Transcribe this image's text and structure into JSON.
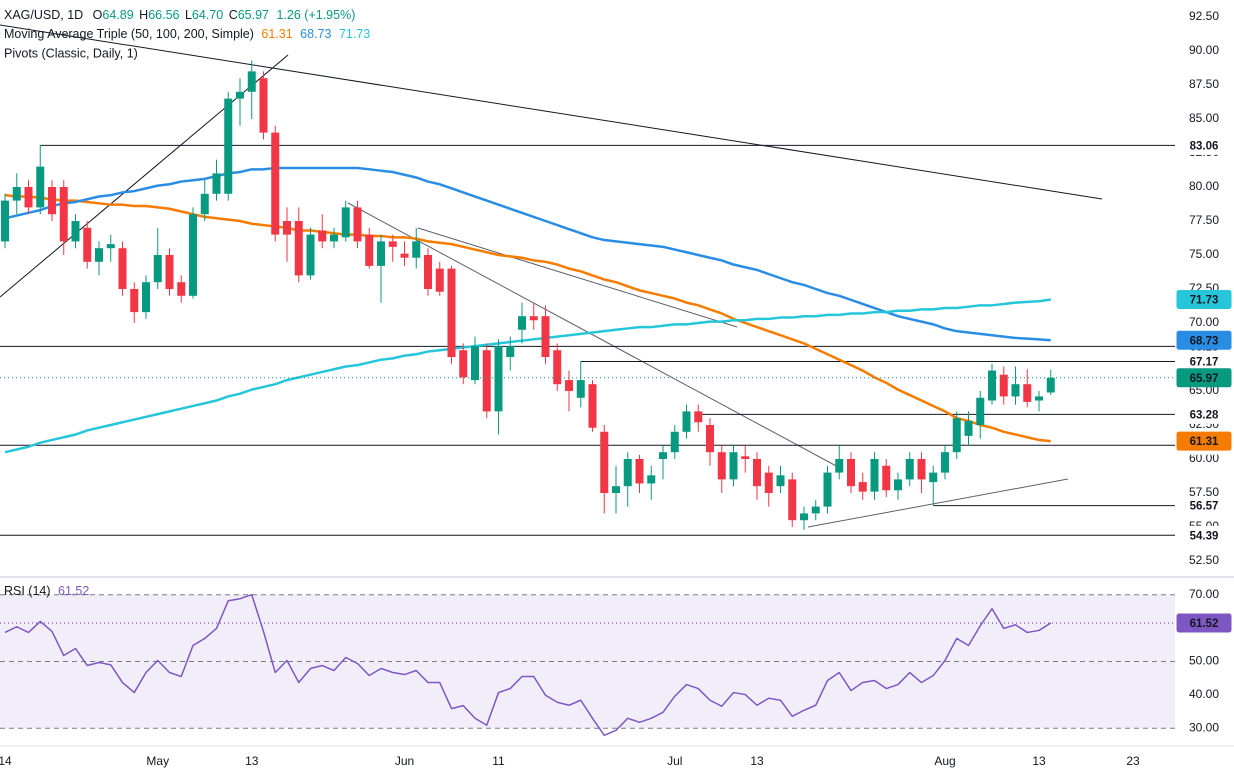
{
  "chart_data": [
    {
      "type": "candlestick",
      "title": "XAG/USD, 1D",
      "ohlc_legend": [
        {
          "key": "O",
          "label": "64.89"
        },
        {
          "key": "H",
          "label": "66.56"
        },
        {
          "key": "L",
          "label": "64.70"
        },
        {
          "key": "C",
          "label": "65.97"
        }
      ],
      "change": "1.26 (+1.95%)",
      "ma_title": "Moving Average Triple (50, 100, 200, Simple)",
      "pivots_title": "Pivots (Classic, Daily, 1)",
      "categories": [
        "14",
        null,
        null,
        null,
        null,
        null,
        null,
        null,
        null,
        null,
        null,
        null,
        null,
        "May",
        null,
        null,
        null,
        null,
        null,
        null,
        null,
        "13",
        null,
        null,
        null,
        null,
        null,
        null,
        null,
        null,
        null,
        null,
        null,
        null,
        "Jun",
        null,
        null,
        null,
        null,
        null,
        null,
        null,
        "11",
        null,
        null,
        null,
        null,
        null,
        null,
        null,
        null,
        null,
        null,
        null,
        null,
        null,
        null,
        "Jul",
        null,
        null,
        null,
        null,
        null,
        null,
        "13",
        null,
        null,
        null,
        null,
        null,
        null,
        null,
        null,
        null,
        null,
        null,
        null,
        null,
        null,
        null,
        "Aug",
        null,
        null,
        null,
        null,
        null,
        null,
        null,
        "13",
        null,
        null,
        null,
        null,
        null,
        null,
        null,
        "23",
        null,
        null,
        null
      ],
      "open": [
        76,
        79,
        80,
        78.5,
        80,
        80,
        76,
        77,
        74.5,
        75.5,
        75.5,
        72.5,
        70.8,
        73,
        75,
        73,
        72,
        78,
        79.5,
        79.5,
        86.5,
        87,
        88,
        84,
        77.5,
        77.5,
        73.5,
        76.8,
        76,
        76.3,
        78.5,
        76.5,
        74.2,
        76,
        75.1,
        74.8,
        75,
        74,
        74,
        68,
        65.8,
        68,
        63.5,
        67.5,
        69.5,
        70.5,
        70.5,
        68,
        65.8,
        64.5,
        65.5,
        62,
        57.5,
        58,
        60,
        58.2,
        60,
        60.5,
        62,
        63.5,
        62.5,
        60.5,
        58.5,
        60.2,
        60,
        59,
        58,
        58.5,
        55.5,
        56,
        56.5,
        59,
        60,
        58.3,
        57.6,
        59.5,
        57.7,
        58.5,
        60,
        58.3,
        59,
        60.5,
        61.7,
        62.5,
        64.3,
        66.2,
        64.6,
        65.5,
        64.3,
        64.89,
        null,
        null,
        null,
        null,
        null,
        null,
        null,
        null,
        null,
        null
      ],
      "high": [
        79.5,
        81,
        80.5,
        83.1,
        80.5,
        80.5,
        78,
        77.5,
        76,
        76.5,
        76,
        73,
        73.5,
        77,
        75.5,
        73.5,
        78.5,
        80.5,
        82,
        87,
        88,
        89.3,
        88.5,
        84.5,
        78.5,
        78.5,
        77,
        78,
        77,
        79,
        79,
        77,
        76.5,
        76.5,
        76,
        77,
        75.5,
        74.5,
        74.2,
        68.5,
        69,
        68.5,
        68.8,
        69,
        71.5,
        71.5,
        71.3,
        68.5,
        66.5,
        67.2,
        65.8,
        62.5,
        59.5,
        60.5,
        60.3,
        59.5,
        61,
        62.5,
        64,
        64,
        63,
        61,
        61,
        61,
        60.5,
        59.5,
        59.5,
        59,
        56.5,
        57,
        59.5,
        61,
        60.5,
        59,
        60.5,
        60,
        59,
        60.5,
        60.5,
        59.5,
        61,
        63.5,
        63.5,
        65,
        67,
        66.8,
        66.8,
        66.6,
        65,
        66.56,
        null,
        null,
        null,
        null,
        null,
        null,
        null,
        null,
        null,
        null
      ],
      "low": [
        75.5,
        78,
        78,
        78,
        77.5,
        75,
        75.5,
        74,
        73.5,
        74.5,
        72,
        70,
        70.3,
        72.5,
        72,
        71.5,
        71.8,
        77.5,
        79,
        79,
        84.5,
        85,
        83.5,
        76,
        74.5,
        73,
        73.2,
        75.5,
        75.5,
        76,
        75.5,
        74,
        71.5,
        74.5,
        74.2,
        74,
        72,
        72,
        67,
        65.5,
        65.5,
        63,
        61.8,
        66.5,
        68.5,
        69.5,
        67,
        65,
        63.5,
        63.8,
        62,
        56,
        56,
        56.5,
        57.5,
        57,
        58.5,
        60,
        61.5,
        62,
        59.5,
        57.5,
        58,
        59,
        57,
        56.5,
        57.5,
        55,
        54.8,
        55.5,
        56,
        58.5,
        57.5,
        57,
        57,
        57.2,
        57,
        58,
        57.5,
        56.6,
        58.5,
        60,
        61,
        61.5,
        64,
        64,
        64,
        63.8,
        63.5,
        64.7,
        null,
        null,
        null,
        null,
        null,
        null,
        null,
        null,
        null,
        null
      ],
      "close": [
        79,
        80,
        78.5,
        81.5,
        78,
        76,
        77.5,
        74.5,
        75.5,
        75.8,
        72.5,
        70.8,
        73,
        75,
        72.5,
        72,
        78,
        79.5,
        81,
        86.5,
        87,
        88.5,
        84,
        76.5,
        76.5,
        73.5,
        76.5,
        76,
        76.5,
        78.5,
        76,
        74.2,
        76,
        75.6,
        74.8,
        76,
        72.5,
        72.3,
        67.5,
        66,
        68.3,
        63.5,
        68.3,
        68.3,
        70.5,
        70.2,
        67.5,
        65.5,
        65,
        65.8,
        62.3,
        57.5,
        58,
        60,
        58.2,
        58.8,
        60.5,
        62,
        63.5,
        62.7,
        60.5,
        58.5,
        60.5,
        60,
        58,
        57.5,
        58.8,
        55.5,
        56,
        56.5,
        59,
        60,
        58,
        57.6,
        60,
        57.7,
        58.5,
        60,
        58.5,
        59,
        60.5,
        63,
        62.8,
        64.5,
        66.5,
        64.6,
        65.5,
        64.2,
        64.6,
        65.97,
        null,
        null,
        null,
        null,
        null,
        null,
        null,
        null,
        null,
        null
      ],
      "up_color": "#089981",
      "down_color": "#f23645",
      "series": [
        {
          "color": "#f57c00",
          "values": [
            79.4,
            79.3,
            79.3,
            79.2,
            79.1,
            79.0,
            79.0,
            78.9,
            78.8,
            78.7,
            78.7,
            78.6,
            78.6,
            78.5,
            78.4,
            78.2,
            78.0,
            77.8,
            77.7,
            77.6,
            77.5,
            77.3,
            77.2,
            77.1,
            77.0,
            76.8,
            76.8,
            76.7,
            76.6,
            76.5,
            76.5,
            76.4,
            76.4,
            76.3,
            76.3,
            76.2,
            76.0,
            75.9,
            75.8,
            75.6,
            75.4,
            75.2,
            75.0,
            74.9,
            74.8,
            74.6,
            74.5,
            74.3,
            74.0,
            73.8,
            73.5,
            73.2,
            73.0,
            72.7,
            72.4,
            72.2,
            72.0,
            71.8,
            71.5,
            71.3,
            71.0,
            70.7,
            70.3,
            70.0,
            69.7,
            69.4,
            69.1,
            68.8,
            68.5,
            68.1,
            67.7,
            67.3,
            66.9,
            66.5,
            66.0,
            65.6,
            65.1,
            64.7,
            64.3,
            63.9,
            63.5,
            63.0,
            62.8,
            62.5,
            62.3,
            62.0,
            61.8,
            61.6,
            61.4,
            61.31,
            null,
            null,
            null,
            null,
            null,
            null,
            null,
            null,
            null,
            null
          ]
        },
        {
          "color": "#2a8de4",
          "values": [
            77.7,
            77.9,
            78.1,
            78.3,
            78.6,
            78.8,
            78.9,
            79.1,
            79.3,
            79.4,
            79.6,
            79.7,
            79.9,
            80.1,
            80.2,
            80.4,
            80.5,
            80.6,
            80.8,
            81.0,
            81.1,
            81.3,
            81.3,
            81.4,
            81.4,
            81.4,
            81.4,
            81.4,
            81.4,
            81.4,
            81.4,
            81.3,
            81.2,
            81.1,
            80.9,
            80.7,
            80.4,
            80.2,
            79.9,
            79.6,
            79.3,
            79.0,
            78.7,
            78.4,
            78.1,
            77.8,
            77.5,
            77.2,
            76.9,
            76.6,
            76.3,
            76.1,
            76.0,
            75.9,
            75.8,
            75.7,
            75.6,
            75.4,
            75.2,
            75.0,
            74.8,
            74.6,
            74.3,
            74.1,
            73.9,
            73.6,
            73.3,
            73.0,
            72.8,
            72.5,
            72.2,
            72.0,
            71.7,
            71.4,
            71.1,
            70.8,
            70.5,
            70.3,
            70.1,
            69.9,
            69.6,
            69.4,
            69.3,
            69.2,
            69.1,
            69.0,
            68.9,
            68.85,
            68.8,
            68.73,
            null,
            null,
            null,
            null,
            null,
            null,
            null,
            null,
            null,
            null
          ]
        },
        {
          "color": "#26c6da",
          "values": [
            60.5,
            60.7,
            60.9,
            61.2,
            61.4,
            61.6,
            61.8,
            62.1,
            62.3,
            62.5,
            62.7,
            62.9,
            63.1,
            63.3,
            63.5,
            63.7,
            63.9,
            64.1,
            64.3,
            64.6,
            64.8,
            65.1,
            65.3,
            65.5,
            65.8,
            66.0,
            66.2,
            66.4,
            66.6,
            66.8,
            66.9,
            67.1,
            67.3,
            67.4,
            67.6,
            67.7,
            67.9,
            68.0,
            68.1,
            68.2,
            68.3,
            68.4,
            68.5,
            68.6,
            68.7,
            68.8,
            68.9,
            69.0,
            69.1,
            69.2,
            69.3,
            69.4,
            69.5,
            69.6,
            69.7,
            69.7,
            69.8,
            69.9,
            69.9,
            70.0,
            70.1,
            70.1,
            70.2,
            70.2,
            70.3,
            70.3,
            70.4,
            70.4,
            70.5,
            70.5,
            70.6,
            70.6,
            70.7,
            70.7,
            70.8,
            70.8,
            70.9,
            70.9,
            71.0,
            71.0,
            71.1,
            71.1,
            71.2,
            71.3,
            71.3,
            71.4,
            71.5,
            71.55,
            71.6,
            71.73,
            null,
            null,
            null,
            null,
            null,
            null,
            null,
            null,
            null,
            null
          ]
        }
      ],
      "pivots": [
        83.06,
        68.28,
        67.17,
        63.28,
        61.01,
        56.57,
        54.39
      ],
      "pivot_color": "#131722",
      "ylim": [
        51.47,
        93.75
      ],
      "yticks": [
        {
          "value": 52.5,
          "label": "52.50"
        },
        {
          "value": 55,
          "label": "55.00"
        },
        {
          "value": 57.5,
          "label": "57.50"
        },
        {
          "value": 60,
          "label": "60.00"
        },
        {
          "value": 62.5,
          "label": "62.50"
        },
        {
          "value": 65,
          "label": "65.00"
        },
        {
          "value": 67.5,
          "label": "67.50"
        },
        {
          "value": 70,
          "label": "70.00"
        },
        {
          "value": 72.5,
          "label": "72.50"
        },
        {
          "value": 75,
          "label": "75.00"
        },
        {
          "value": 77.5,
          "label": "77.50"
        },
        {
          "value": 80,
          "label": "80.00"
        },
        {
          "value": 82.5,
          "label": "82.50"
        },
        {
          "value": 85,
          "label": "85.00"
        },
        {
          "value": 87.5,
          "label": "87.50"
        },
        {
          "value": 90,
          "label": "90.00"
        },
        {
          "value": 92.5,
          "label": "92.50"
        }
      ],
      "grid": false
    },
    {
      "type": "line",
      "title": "RSI (14)",
      "series": [
        {
          "color": "#7e57c2",
          "values": [
            58.7,
            60.4,
            58.7,
            62,
            59,
            51.8,
            53.9,
            48.8,
            49.7,
            49,
            43.7,
            40.7,
            46.7,
            50.3,
            46.7,
            45.5,
            54.8,
            56.9,
            59.9,
            68.2,
            68.8,
            70,
            59,
            46.7,
            50.3,
            43.7,
            47.9,
            48.8,
            47.3,
            51.2,
            49.4,
            45.8,
            47.9,
            46.7,
            46.1,
            47.3,
            43.7,
            43.7,
            35.9,
            36.8,
            33,
            30.9,
            40.7,
            41.9,
            45.5,
            45.5,
            39.9,
            37.8,
            36.9,
            38.4,
            33,
            27.9,
            29.4,
            33,
            31.8,
            33,
            34.8,
            39.6,
            43.1,
            41.9,
            38.4,
            36.6,
            40.7,
            40.1,
            36.9,
            39,
            38.4,
            33.6,
            35.4,
            36.9,
            44.3,
            46.7,
            41.3,
            43.7,
            44.3,
            41.9,
            43.1,
            46.7,
            43.7,
            45.8,
            50.3,
            56.9,
            54.8,
            60.7,
            65.8,
            59.9,
            61,
            58.7,
            59.3,
            61.52,
            null,
            null,
            null,
            null,
            null,
            null,
            null,
            null,
            null,
            null
          ]
        }
      ],
      "levels": [
        30,
        50,
        70
      ],
      "band_color": "#7e57c2",
      "ylim": [
        25,
        75
      ],
      "yticks": [
        {
          "value": 30,
          "label": "30.00"
        },
        {
          "value": 40,
          "label": "40.00"
        },
        {
          "value": 50,
          "label": "50.00"
        },
        {
          "value": 60,
          "label": "60.00"
        },
        {
          "value": 70,
          "label": "70.00"
        }
      ],
      "grid": false
    }
  ]
}
